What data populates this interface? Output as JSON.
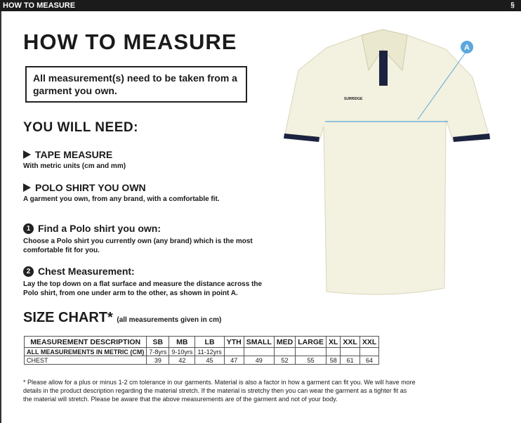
{
  "header": {
    "title": "HOW TO MEASURE",
    "logo": "SURRIDGE"
  },
  "title": "HOW TO MEASURE",
  "note": "All measurement(s) need to be taken from a garment you own.",
  "need_heading": "YOU WILL NEED:",
  "needs": [
    {
      "title": "TAPE MEASURE",
      "desc": "With metric units (cm and mm)"
    },
    {
      "title": "POLO SHIRT YOU OWN",
      "desc": "A garment you own, from any brand, with a comfortable fit."
    }
  ],
  "steps": [
    {
      "num": "1",
      "title": "Find a Polo shirt you own:",
      "desc": "Choose a Polo shirt you currently own (any brand) which is the most comfortable fit for you."
    },
    {
      "num": "2",
      "title": "Chest Measurement:",
      "desc": "Lay the top down on a flat surface and measure the distance across the Polo shirt, from one under arm to the other, as shown in point A."
    }
  ],
  "size_chart": {
    "title": "SIZE CHART*",
    "subtitle": "(all measurements given in cm)",
    "headers": [
      "MEASUREMENT DESCRIPTION",
      "SB",
      "MB",
      "LB",
      "YTH",
      "SMALL",
      "MED",
      "LARGE",
      "XL",
      "XXL",
      "XXL"
    ],
    "rows": [
      [
        "ALL MEASUREMENTS IN METRIC (CM)",
        "7-8yrs",
        "9-10yrs",
        "11-12yrs",
        "",
        "",
        "",
        "",
        "",
        "",
        ""
      ],
      [
        "CHEST",
        "39",
        "42",
        "45",
        "47",
        "49",
        "52",
        "55",
        "58",
        "61",
        "64"
      ]
    ]
  },
  "footnote": "* Please allow for a plus or minus 1-2 cm tolerance in our garments. Material is also a factor in how a garment can fit you. We will have more details in the product description regarding the material stretch. If the material is stretchy then you can wear the garment as a tighter fit as the material will stretch. Please be aware that the above measurements are of the garment and not of your body.",
  "shirt": {
    "brand": "SURRIDGE",
    "point_label": "A",
    "accent": "#5ba7dc",
    "trim": "#1c2340"
  }
}
